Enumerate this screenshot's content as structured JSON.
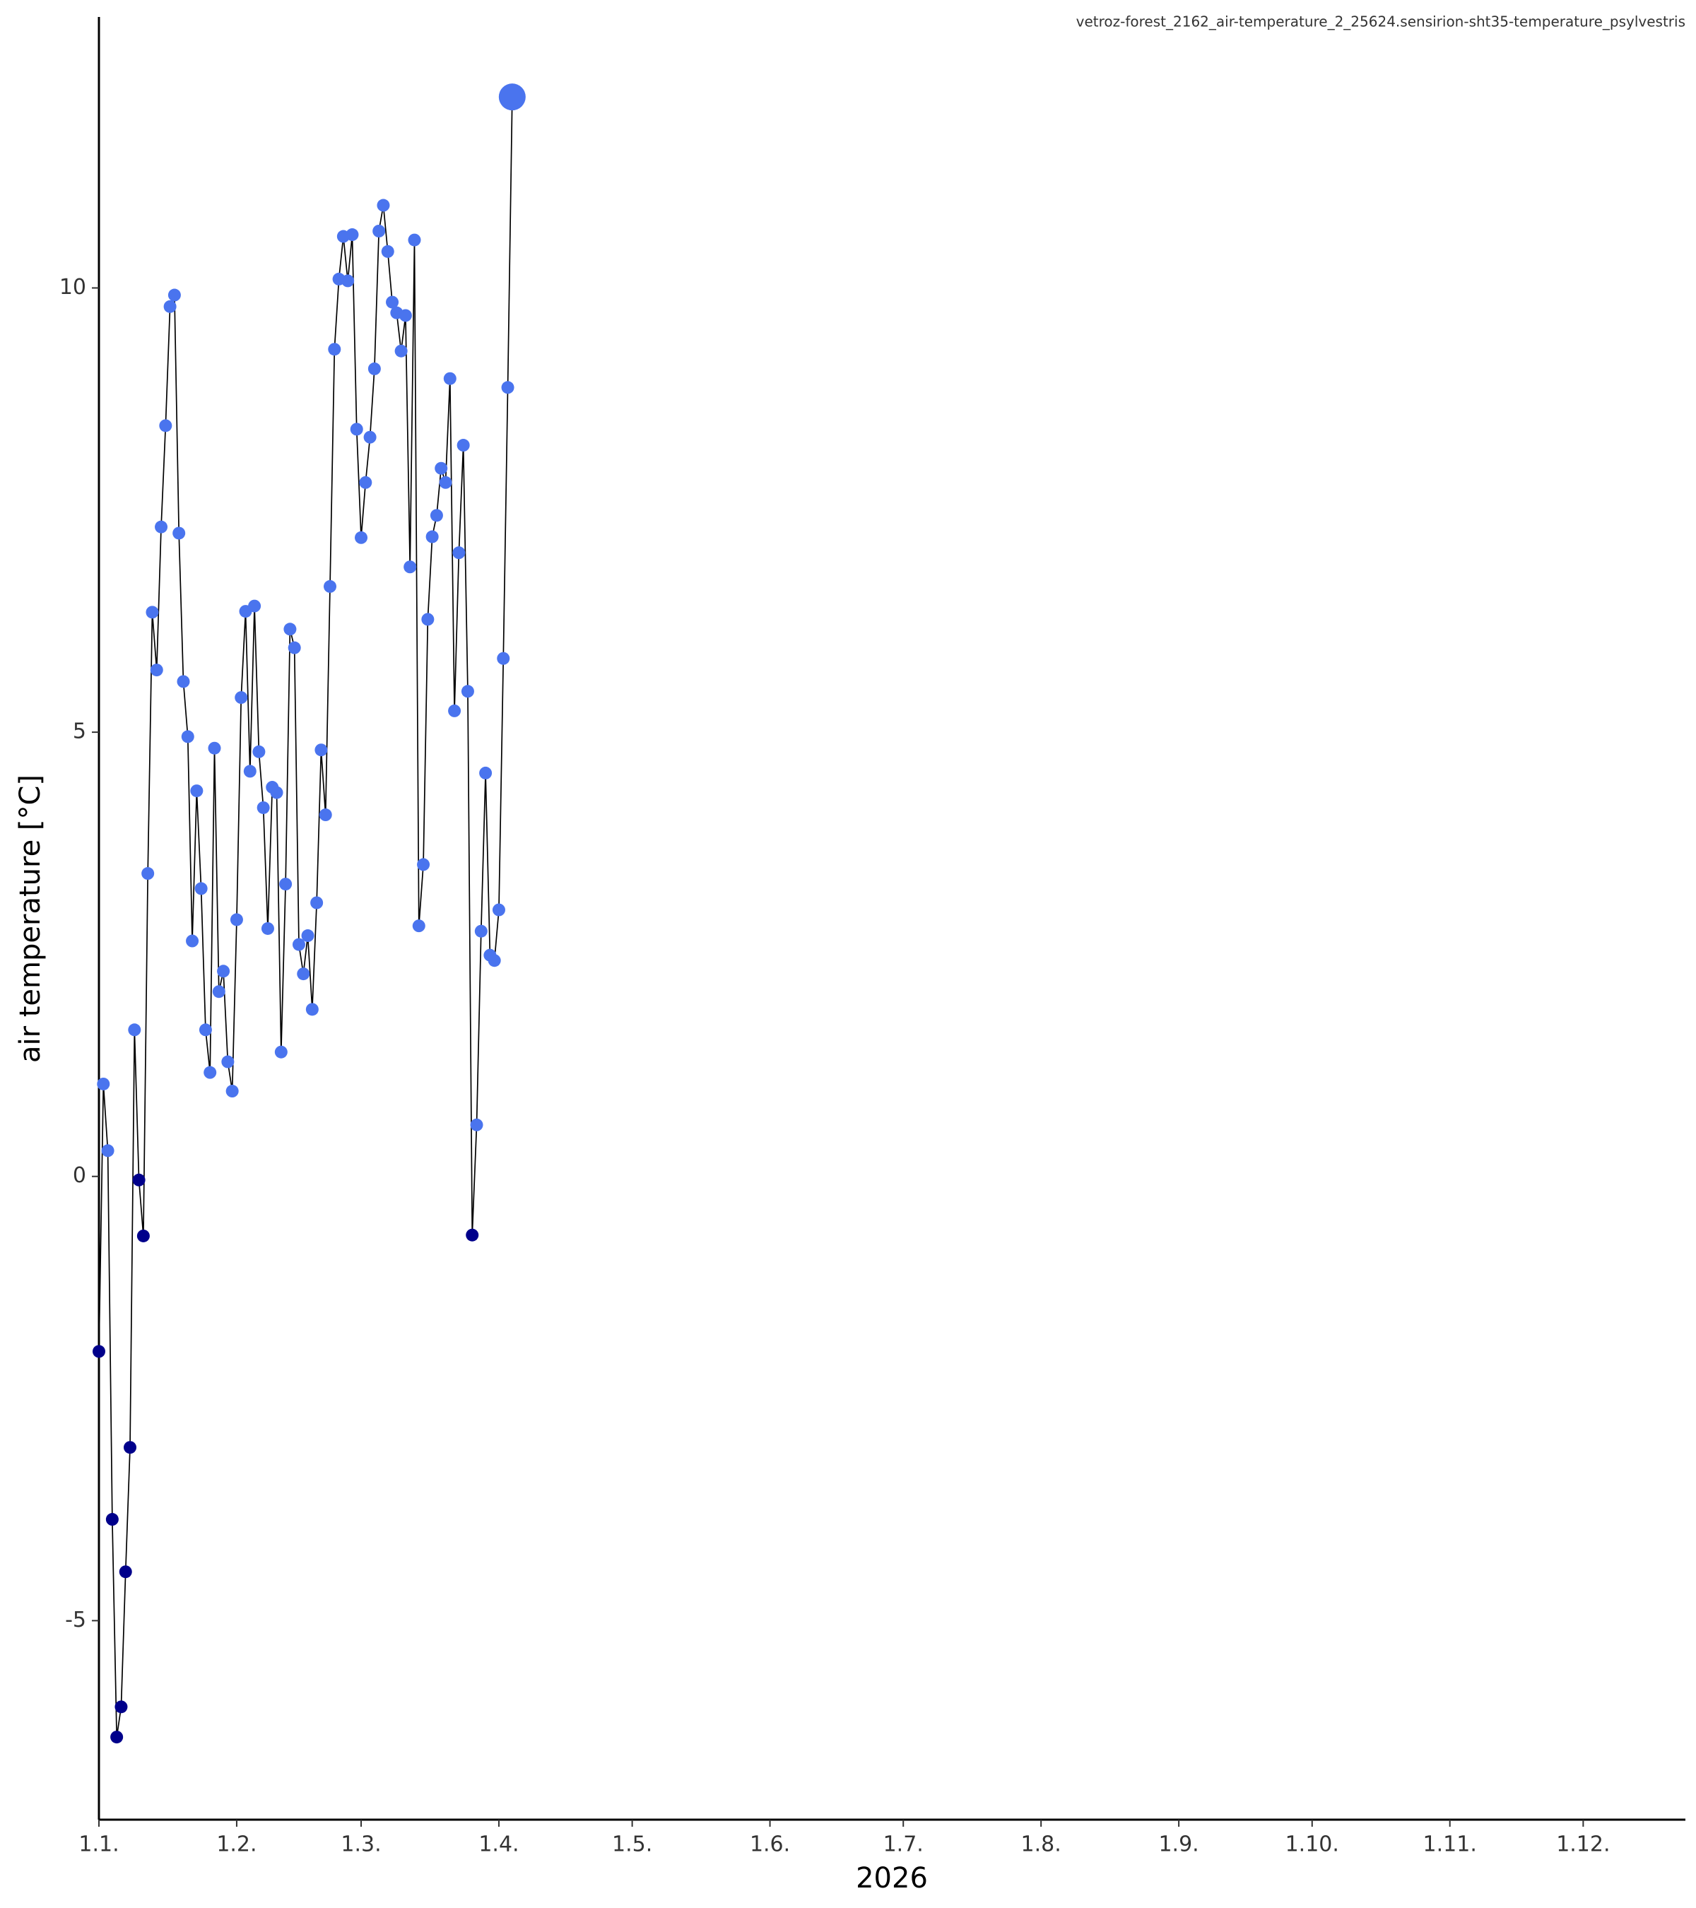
{
  "chart_data": {
    "type": "line",
    "title": "vetroz-forest_2162_air-temperature_2_25624.sensirion-sht35-temperature_psylvestris",
    "x_label": "2026",
    "y_label": "air temperature [°C]",
    "color": "#4a74ee",
    "below_zero_color": "#00008b",
    "line_color": "#000000",
    "highlight_last": true,
    "x": [
      0,
      1,
      2,
      3,
      4,
      5,
      6,
      7,
      8,
      9,
      10,
      11,
      12,
      13,
      14,
      15,
      16,
      17,
      18,
      19,
      20,
      21,
      22,
      23,
      24,
      25,
      26,
      27,
      28,
      29,
      30,
      31,
      32,
      33,
      34,
      35,
      36,
      37,
      38,
      39,
      40,
      41,
      42,
      43,
      44,
      45,
      46,
      47,
      48,
      49,
      50,
      51,
      52,
      53,
      54,
      55,
      56,
      57,
      58,
      59,
      60,
      61,
      62,
      63,
      64,
      65,
      66,
      67,
      68,
      69,
      70,
      71,
      72,
      73,
      74,
      75,
      76,
      77,
      78,
      79,
      80,
      81,
      82,
      83,
      84,
      85,
      86,
      87,
      88,
      89,
      90,
      91,
      92,
      93
    ],
    "values": [
      -1.97,
      1.04,
      0.29,
      -3.86,
      -6.31,
      -5.97,
      -4.45,
      -3.05,
      1.65,
      -0.04,
      -0.67,
      3.41,
      6.35,
      5.7,
      7.31,
      8.45,
      9.79,
      9.92,
      7.24,
      5.57,
      4.95,
      2.65,
      4.34,
      3.24,
      1.65,
      1.17,
      4.82,
      2.08,
      2.31,
      1.29,
      0.96,
      2.89,
      5.39,
      6.36,
      4.56,
      6.42,
      4.78,
      4.15,
      2.79,
      4.38,
      4.32,
      1.4,
      3.29,
      6.16,
      5.95,
      2.61,
      2.28,
      2.71,
      1.88,
      3.08,
      4.8,
      4.07,
      6.64,
      9.31,
      10.1,
      10.58,
      10.08,
      10.6,
      8.41,
      7.19,
      7.81,
      8.32,
      9.09,
      10.64,
      10.93,
      10.41,
      9.84,
      9.72,
      9.29,
      9.69,
      6.86,
      10.54,
      2.82,
      3.51,
      6.27,
      7.2,
      7.44,
      7.97,
      7.81,
      8.98,
      5.24,
      7.02,
      8.23,
      5.46,
      -0.66,
      0.58,
      2.76,
      4.54,
      2.49,
      2.43,
      3.0,
      5.83,
      8.88,
      12.15
    ],
    "xlim": [
      0,
      357
    ],
    "xticks": [
      {
        "value": 0,
        "label": "1.1."
      },
      {
        "value": 31,
        "label": "1.2."
      },
      {
        "value": 59,
        "label": "1.3."
      },
      {
        "value": 90,
        "label": "1.4."
      },
      {
        "value": 120,
        "label": "1.5."
      },
      {
        "value": 151,
        "label": "1.6."
      },
      {
        "value": 181,
        "label": "1.7."
      },
      {
        "value": 212,
        "label": "1.8."
      },
      {
        "value": 243,
        "label": "1.9."
      },
      {
        "value": 273,
        "label": "1.10."
      },
      {
        "value": 304,
        "label": "1.11."
      },
      {
        "value": 334,
        "label": "1.12."
      }
    ],
    "ylim": [
      -7.24,
      13.05
    ],
    "yticks": [
      -5,
      0,
      5,
      10
    ],
    "grid": false
  }
}
